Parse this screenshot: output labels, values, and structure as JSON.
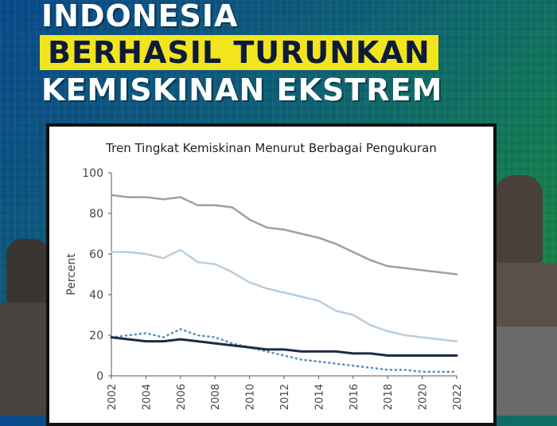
{
  "headline": {
    "line1": "INDONESIA",
    "line2": "BERHASIL TURUNKAN",
    "line3": "KEMISKINAN  EKSTREM"
  },
  "colors": {
    "highlight": "#f2e51d",
    "series_top": "#a0a0a0",
    "series_mid": "#b9cde0",
    "series_low": "#1c2b45",
    "series_dotted": "#5a93b8"
  },
  "chart_data": {
    "type": "line",
    "title": "Tren Tingkat Kemiskinan Menurut Berbagai Pengukuran",
    "xlabel": "",
    "ylabel": "Percent",
    "ylim": [
      0,
      100
    ],
    "yticks": [
      "0",
      "20",
      "40",
      "60",
      "80",
      "100"
    ],
    "xlim": [
      2002,
      2022
    ],
    "xticks": [
      "2002",
      "2004",
      "2006",
      "2008",
      "2010",
      "2012",
      "2014",
      "2016",
      "2018",
      "2020",
      "2022"
    ],
    "grid": false,
    "x": [
      2002,
      2003,
      2004,
      2005,
      2006,
      2007,
      2008,
      2009,
      2010,
      2011,
      2012,
      2013,
      2014,
      2015,
      2016,
      2017,
      2018,
      2019,
      2020,
      2021,
      2022
    ],
    "series": [
      {
        "style": "solid",
        "color": "#a0a0a0",
        "values": [
          89,
          88,
          88,
          87,
          88,
          84,
          84,
          83,
          77,
          73,
          72,
          70,
          68,
          65,
          61,
          57,
          54,
          53,
          52,
          51,
          50
        ]
      },
      {
        "style": "solid",
        "color": "#b9cde0",
        "values": [
          61,
          61,
          60,
          58,
          62,
          56,
          55,
          51,
          46,
          43,
          41,
          39,
          37,
          32,
          30,
          25,
          22,
          20,
          19,
          18,
          17
        ]
      },
      {
        "style": "dotted",
        "color": "#5a93b8",
        "values": [
          19,
          20,
          21,
          19,
          23,
          20,
          19,
          16,
          14,
          12,
          10,
          8,
          7,
          6,
          5,
          4,
          3,
          3,
          2,
          2,
          2
        ]
      },
      {
        "style": "solid",
        "color": "#1c2b45",
        "values": [
          19,
          18,
          17,
          17,
          18,
          17,
          16,
          15,
          14,
          13,
          13,
          12,
          12,
          12,
          11,
          11,
          10,
          10,
          10,
          10,
          10
        ]
      }
    ]
  }
}
